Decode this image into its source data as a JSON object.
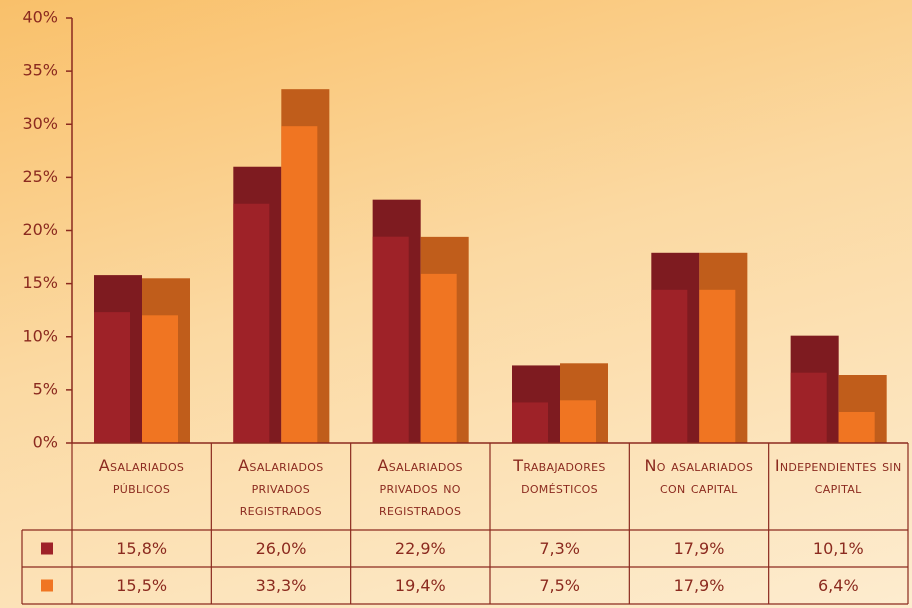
{
  "chart_data": {
    "type": "bar",
    "categories": [
      "Asalariados públicos",
      "Asalariados privados registrados",
      "Asalariados privados no registrados",
      "Trabajadores domésticos",
      "No asalariados con capital",
      "Independientes sin capital"
    ],
    "series": [
      {
        "color": "#9e2228",
        "values": [
          15.8,
          26.0,
          22.9,
          7.3,
          17.9,
          10.1
        ],
        "value_labels": [
          "15,8%",
          "26,0%",
          "22,9%",
          "7,3%",
          "17,9%",
          "10,1%"
        ]
      },
      {
        "color": "#f07522",
        "values": [
          15.5,
          33.3,
          19.4,
          7.5,
          17.9,
          6.4
        ],
        "value_labels": [
          "15,5%",
          "33,3%",
          "19,4%",
          "7,5%",
          "17,9%",
          "6,4%"
        ]
      }
    ],
    "ylim": [
      0,
      40
    ],
    "yticks": [
      {
        "value": 0,
        "label": "0%"
      },
      {
        "value": 5,
        "label": "5%"
      },
      {
        "value": 10,
        "label": "10%"
      },
      {
        "value": 15,
        "label": "15%"
      },
      {
        "value": 20,
        "label": "20%"
      },
      {
        "value": 25,
        "label": "25%"
      },
      {
        "value": 30,
        "label": "30%"
      },
      {
        "value": 35,
        "label": "35%"
      },
      {
        "value": 40,
        "label": "40%"
      }
    ]
  }
}
